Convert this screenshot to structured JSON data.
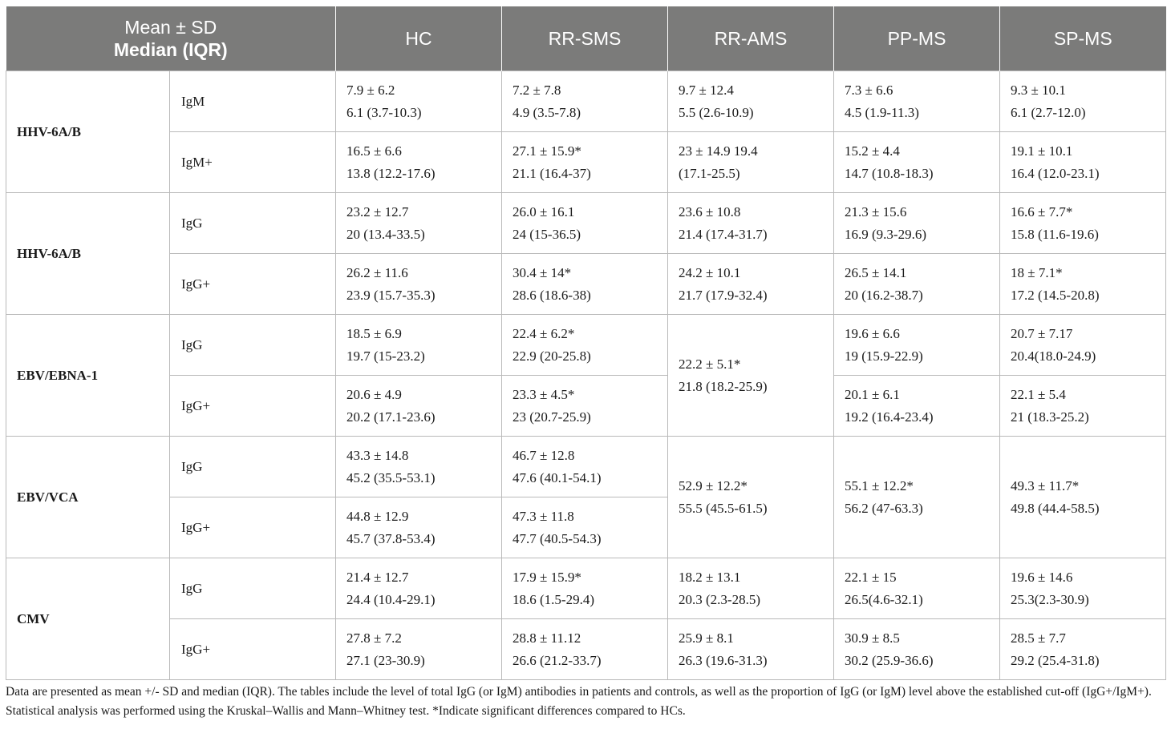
{
  "header": {
    "col0_line1": "Mean ± SD",
    "col0_line2": "Median (IQR)",
    "groups": [
      "HC",
      "RR-SMS",
      "RR-AMS",
      "PP-MS",
      "SP-MS"
    ]
  },
  "rows": {
    "hhv_igm": {
      "group": "HHV-6A/B",
      "igm": {
        "label": "IgM",
        "hc": [
          "7.9 ± 6.2",
          "6.1 (3.7-10.3)"
        ],
        "rrsms": [
          "7.2 ± 7.8",
          "4.9 (3.5-7.8)"
        ],
        "rrams": [
          "9.7 ± 12.4",
          "5.5 (2.6-10.9)"
        ],
        "ppms": [
          "7.3 ± 6.6",
          "4.5 (1.9-11.3)"
        ],
        "spms": [
          "9.3 ± 10.1",
          "6.1 (2.7-12.0)"
        ]
      },
      "igmplus": {
        "label": "IgM+",
        "hc": [
          "16.5 ± 6.6",
          "13.8 (12.2-17.6)"
        ],
        "rrsms": [
          "27.1 ± 15.9*",
          "21.1 (16.4-37)"
        ],
        "rrams": [
          "23 ± 14.9 19.4",
          "(17.1-25.5)"
        ],
        "ppms": [
          "15.2 ± 4.4",
          "14.7 (10.8-18.3)"
        ],
        "spms": [
          "19.1 ± 10.1",
          "16.4 (12.0-23.1)"
        ]
      }
    },
    "hhv_igg": {
      "group": "HHV-6A/B",
      "igg": {
        "label": "IgG",
        "hc": [
          "23.2 ± 12.7",
          "20 (13.4-33.5)"
        ],
        "rrsms": [
          "26.0 ± 16.1",
          "24 (15-36.5)"
        ],
        "rrams": [
          "23.6 ± 10.8",
          "21.4 (17.4-31.7)"
        ],
        "ppms": [
          "21.3 ± 15.6",
          "16.9 (9.3-29.6)"
        ],
        "spms": [
          "16.6 ± 7.7*",
          "15.8 (11.6-19.6)"
        ]
      },
      "iggplus": {
        "label": "IgG+",
        "hc": [
          "26.2 ± 11.6",
          "23.9 (15.7-35.3)"
        ],
        "rrsms": [
          "30.4 ± 14*",
          "28.6 (18.6-38)"
        ],
        "rrams": [
          "24.2 ± 10.1",
          "21.7 (17.9-32.4)"
        ],
        "ppms": [
          "26.5 ± 14.1",
          "20 (16.2-38.7)"
        ],
        "spms": [
          "18 ± 7.1*",
          "17.2 (14.5-20.8)"
        ]
      }
    },
    "ebna": {
      "group": "EBV/EBNA-1",
      "rrams_merged": [
        "22.2 ± 5.1*",
        "21.8 (18.2-25.9)"
      ],
      "igg": {
        "label": "IgG",
        "hc": [
          "18.5 ± 6.9",
          "19.7 (15-23.2)"
        ],
        "rrsms": [
          "22.4 ± 6.2*",
          "22.9 (20-25.8)"
        ],
        "ppms": [
          "19.6 ± 6.6",
          "19 (15.9-22.9)"
        ],
        "spms": [
          "20.7 ± 7.17",
          "20.4(18.0-24.9)"
        ]
      },
      "iggplus": {
        "label": "IgG+",
        "hc": [
          "20.6 ± 4.9",
          "20.2 (17.1-23.6)"
        ],
        "rrsms": [
          "23.3 ± 4.5*",
          "23 (20.7-25.9)"
        ],
        "ppms": [
          "20.1 ± 6.1",
          "19.2 (16.4-23.4)"
        ],
        "spms": [
          "22.1 ± 5.4",
          "21 (18.3-25.2)"
        ]
      }
    },
    "vca": {
      "group": "EBV/VCA",
      "rrams_merged": [
        "52.9 ± 12.2*",
        "55.5 (45.5-61.5)"
      ],
      "ppms_merged": [
        "55.1 ± 12.2*",
        "56.2 (47-63.3)"
      ],
      "spms_merged": [
        "49.3 ± 11.7*",
        "49.8 (44.4-58.5)"
      ],
      "igg": {
        "label": "IgG",
        "hc": [
          "43.3 ± 14.8",
          "45.2 (35.5-53.1)"
        ],
        "rrsms": [
          "46.7 ± 12.8",
          "47.6 (40.1-54.1)"
        ]
      },
      "iggplus": {
        "label": "IgG+",
        "hc": [
          "44.8 ± 12.9",
          "45.7 (37.8-53.4)"
        ],
        "rrsms": [
          "47.3 ± 11.8",
          "47.7 (40.5-54.3)"
        ]
      }
    },
    "cmv": {
      "group": "CMV",
      "igg": {
        "label": "IgG",
        "hc": [
          "21.4 ± 12.7",
          "24.4 (10.4-29.1)"
        ],
        "rrsms": [
          "17.9 ± 15.9*",
          "18.6 (1.5-29.4)"
        ],
        "rrams": [
          "18.2 ± 13.1",
          "20.3 (2.3-28.5)"
        ],
        "ppms": [
          "22.1 ± 15",
          "26.5(4.6-32.1)"
        ],
        "spms": [
          "19.6 ± 14.6",
          "25.3(2.3-30.9)"
        ]
      },
      "iggplus": {
        "label": "IgG+",
        "hc": [
          "27.8 ± 7.2",
          "27.1 (23-30.9)"
        ],
        "rrsms": [
          "28.8 ± 11.12",
          "26.6 (21.2-33.7)"
        ],
        "rrams": [
          "25.9 ± 8.1",
          "26.3 (19.6-31.3)"
        ],
        "ppms": [
          "30.9 ± 8.5",
          "30.2 (25.9-36.6)"
        ],
        "spms": [
          "28.5 ± 7.7",
          "29.2 (25.4-31.8)"
        ]
      }
    }
  },
  "footnote": "Data are presented as mean +/- SD and median (IQR). The tables include the level of total IgG (or IgM) antibodies in patients and controls, as well as the proportion of IgG (or IgM) level above the established cut-off (IgG+/IgM+). Statistical analysis was performed using the Kruskal–Wallis and Mann–Whitney test. *Indicate significant differences compared to HCs."
}
